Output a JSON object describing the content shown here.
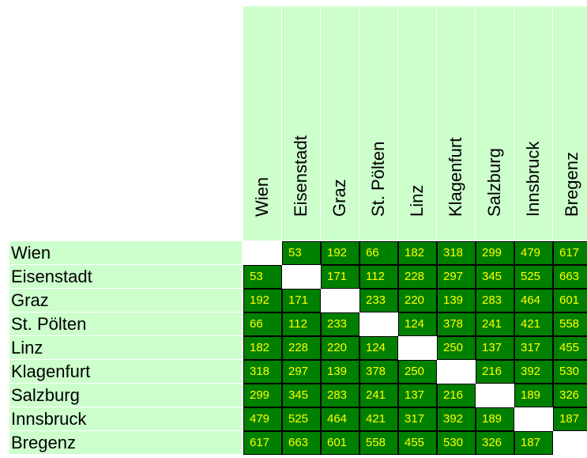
{
  "cities": [
    "Wien",
    "Eisenstadt",
    "Graz",
    "St. Pölten",
    "Linz",
    "Klagenfurt",
    "Salzburg",
    "Innsbruck",
    "Bregenz"
  ],
  "distances": [
    [
      "",
      "53",
      "192",
      "66",
      "182",
      "318",
      "299",
      "479",
      "617"
    ],
    [
      "53",
      "",
      "171",
      "112",
      "228",
      "297",
      "345",
      "525",
      "663"
    ],
    [
      "192",
      "171",
      "",
      "233",
      "220",
      "139",
      "283",
      "464",
      "601"
    ],
    [
      "66",
      "112",
      "233",
      "",
      "124",
      "378",
      "241",
      "421",
      "558"
    ],
    [
      "182",
      "228",
      "220",
      "124",
      "",
      "250",
      "137",
      "317",
      "455"
    ],
    [
      "318",
      "297",
      "139",
      "378",
      "250",
      "",
      "216",
      "392",
      "530"
    ],
    [
      "299",
      "345",
      "283",
      "241",
      "137",
      "216",
      "",
      "189",
      "326"
    ],
    [
      "479",
      "525",
      "464",
      "421",
      "317",
      "392",
      "189",
      "",
      "187"
    ],
    [
      "617",
      "663",
      "601",
      "558",
      "455",
      "530",
      "326",
      "187",
      ""
    ]
  ],
  "colors": {
    "header_bg": "#ccffcc",
    "cell_bg": "#008000",
    "cell_text": "#ffff00",
    "diagonal_bg": "#ffffff"
  }
}
